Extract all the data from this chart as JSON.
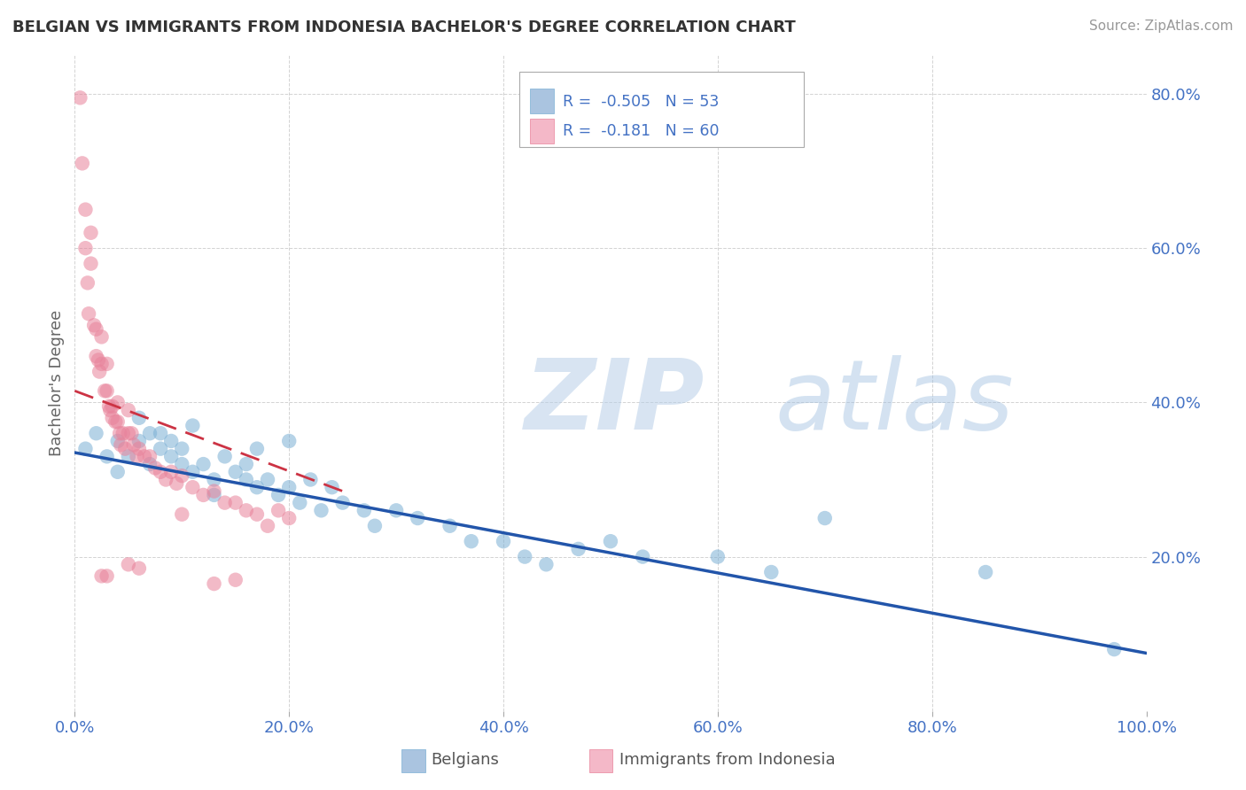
{
  "title": "BELGIAN VS IMMIGRANTS FROM INDONESIA BACHELOR'S DEGREE CORRELATION CHART",
  "source": "Source: ZipAtlas.com",
  "ylabel": "Bachelor's Degree",
  "xlim": [
    0.0,
    1.0
  ],
  "ylim": [
    0.0,
    0.85
  ],
  "x_ticks": [
    0.0,
    0.2,
    0.4,
    0.6,
    0.8,
    1.0
  ],
  "x_tick_labels": [
    "0.0%",
    "20.0%",
    "40.0%",
    "60.0%",
    "80.0%",
    "100.0%"
  ],
  "y_ticks": [
    0.2,
    0.4,
    0.6,
    0.8
  ],
  "y_tick_labels": [
    "20.0%",
    "40.0%",
    "60.0%",
    "80.0%"
  ],
  "blue_color": "#7bafd4",
  "pink_color": "#e8829a",
  "blue_line_color": "#2255aa",
  "pink_line_color": "#cc3344",
  "pink_line_dash": "--",
  "grid_color": "#c8c8c8",
  "background_color": "#ffffff",
  "blue_scatter_x": [
    0.01,
    0.02,
    0.03,
    0.04,
    0.04,
    0.05,
    0.06,
    0.06,
    0.07,
    0.07,
    0.08,
    0.08,
    0.09,
    0.09,
    0.1,
    0.1,
    0.11,
    0.11,
    0.12,
    0.13,
    0.14,
    0.15,
    0.16,
    0.17,
    0.17,
    0.18,
    0.19,
    0.2,
    0.21,
    0.22,
    0.23,
    0.24,
    0.25,
    0.27,
    0.28,
    0.3,
    0.32,
    0.35,
    0.37,
    0.4,
    0.42,
    0.44,
    0.47,
    0.5,
    0.53,
    0.6,
    0.65,
    0.7,
    0.85,
    0.97,
    0.13,
    0.16,
    0.2
  ],
  "blue_scatter_y": [
    0.34,
    0.36,
    0.33,
    0.31,
    0.35,
    0.33,
    0.35,
    0.38,
    0.32,
    0.36,
    0.34,
    0.36,
    0.35,
    0.33,
    0.34,
    0.32,
    0.31,
    0.37,
    0.32,
    0.3,
    0.33,
    0.31,
    0.3,
    0.29,
    0.34,
    0.3,
    0.28,
    0.29,
    0.27,
    0.3,
    0.26,
    0.29,
    0.27,
    0.26,
    0.24,
    0.26,
    0.25,
    0.24,
    0.22,
    0.22,
    0.2,
    0.19,
    0.21,
    0.22,
    0.2,
    0.2,
    0.18,
    0.25,
    0.18,
    0.08,
    0.28,
    0.32,
    0.35
  ],
  "pink_scatter_x": [
    0.005,
    0.007,
    0.01,
    0.01,
    0.012,
    0.013,
    0.015,
    0.015,
    0.018,
    0.02,
    0.02,
    0.022,
    0.023,
    0.025,
    0.025,
    0.028,
    0.03,
    0.03,
    0.032,
    0.033,
    0.035,
    0.035,
    0.038,
    0.04,
    0.04,
    0.042,
    0.043,
    0.045,
    0.047,
    0.05,
    0.05,
    0.053,
    0.055,
    0.058,
    0.06,
    0.065,
    0.07,
    0.075,
    0.08,
    0.085,
    0.09,
    0.095,
    0.1,
    0.11,
    0.12,
    0.13,
    0.14,
    0.15,
    0.16,
    0.17,
    0.18,
    0.19,
    0.2,
    0.025,
    0.03,
    0.05,
    0.06,
    0.1,
    0.13,
    0.15
  ],
  "pink_scatter_y": [
    0.795,
    0.71,
    0.65,
    0.6,
    0.555,
    0.515,
    0.62,
    0.58,
    0.5,
    0.495,
    0.46,
    0.455,
    0.44,
    0.485,
    0.45,
    0.415,
    0.45,
    0.415,
    0.395,
    0.39,
    0.395,
    0.38,
    0.375,
    0.4,
    0.375,
    0.36,
    0.345,
    0.36,
    0.34,
    0.39,
    0.36,
    0.36,
    0.345,
    0.33,
    0.34,
    0.33,
    0.33,
    0.315,
    0.31,
    0.3,
    0.31,
    0.295,
    0.305,
    0.29,
    0.28,
    0.285,
    0.27,
    0.27,
    0.26,
    0.255,
    0.24,
    0.26,
    0.25,
    0.175,
    0.175,
    0.19,
    0.185,
    0.255,
    0.165,
    0.17
  ],
  "blue_line_x": [
    0.0,
    1.0
  ],
  "blue_line_y": [
    0.335,
    0.075
  ],
  "pink_line_x": [
    0.0,
    0.25
  ],
  "pink_line_y": [
    0.415,
    0.285
  ]
}
